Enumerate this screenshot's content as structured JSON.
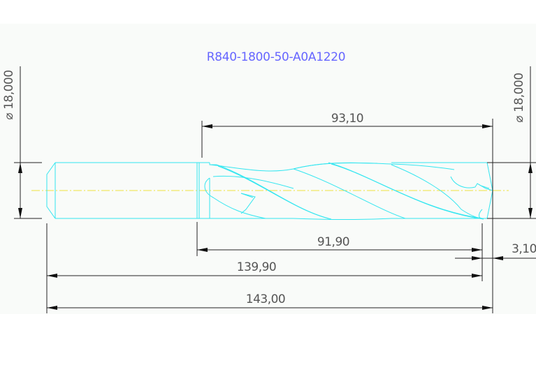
{
  "drawing": {
    "title": "R840-1800-50-A0A1220",
    "colors": {
      "title": "#6666ff",
      "part_outline": "#33e6f0",
      "centerline": "#f0e040",
      "dimension": "#222222",
      "background": "#f9fbf9"
    },
    "dimensions": {
      "shank_diameter": "⌀ 18,000",
      "tip_diameter": "⌀ 18,000",
      "flute_length": "93,10",
      "body_length": "91,90",
      "point_length": "3,10",
      "length_to_corner": "139,90",
      "overall_length": "143,00"
    }
  }
}
